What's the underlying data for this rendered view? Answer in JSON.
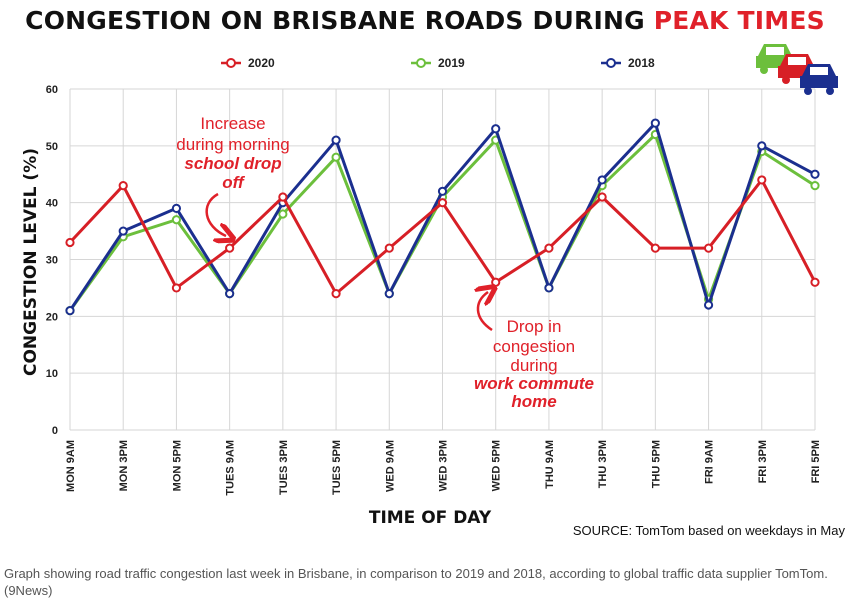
{
  "title_part1": "CONGESTION ON BRISBANE ROADS DURING",
  "title_part2": "PEAK TIMES",
  "caption": "Graph showing road traffic congestion last week in Brisbane, in comparison to 2019 and 2018, according to global traffic data supplier TomTom. (9News)",
  "colors": {
    "2020": "#d71f26",
    "2019": "#6cbf3c",
    "2018": "#1b2f8f",
    "accent": "#e0212a"
  },
  "chart_data": {
    "type": "line",
    "title": "CONGESTION ON BRISBANE ROADS DURING PEAK TIMES",
    "xlabel": "TIME OF DAY",
    "ylabel": "CONGESTION LEVEL (%)",
    "ylim": [
      0,
      60
    ],
    "yticks": [
      0,
      10,
      20,
      30,
      40,
      50,
      60
    ],
    "grid": true,
    "legend": "top",
    "categories": [
      "MON 9AM",
      "MON 3PM",
      "MON 5PM",
      "TUES 9AM",
      "TUES 3PM",
      "TUES 5PM",
      "WED 9AM",
      "WED 3PM",
      "WED 5PM",
      "THU 9AM",
      "THU 3PM",
      "THU 5PM",
      "FRI 9AM",
      "FRI 3PM",
      "FRI 5PM"
    ],
    "series": [
      {
        "name": "2020",
        "color": "#d71f26",
        "values": [
          33,
          43,
          25,
          32,
          41,
          24,
          32,
          40,
          26,
          32,
          41,
          32,
          32,
          44,
          26
        ]
      },
      {
        "name": "2019",
        "color": "#6cbf3c",
        "values": [
          21,
          34,
          37,
          24,
          38,
          48,
          24,
          41,
          51,
          25,
          43,
          52,
          23,
          49,
          43
        ]
      },
      {
        "name": "2018",
        "color": "#1b2f8f",
        "values": [
          21,
          35,
          39,
          24,
          40,
          51,
          24,
          42,
          53,
          25,
          44,
          54,
          22,
          50,
          45
        ]
      }
    ],
    "annotations": [
      {
        "lines": [
          "Increase",
          "during morning"
        ],
        "emphasis": [
          "school drop",
          "off"
        ]
      },
      {
        "lines": [
          "Drop in",
          "congestion",
          "during"
        ],
        "emphasis": [
          "work commute",
          "home"
        ]
      }
    ],
    "source": "SOURCE: TomTom based on weekdays in May"
  }
}
